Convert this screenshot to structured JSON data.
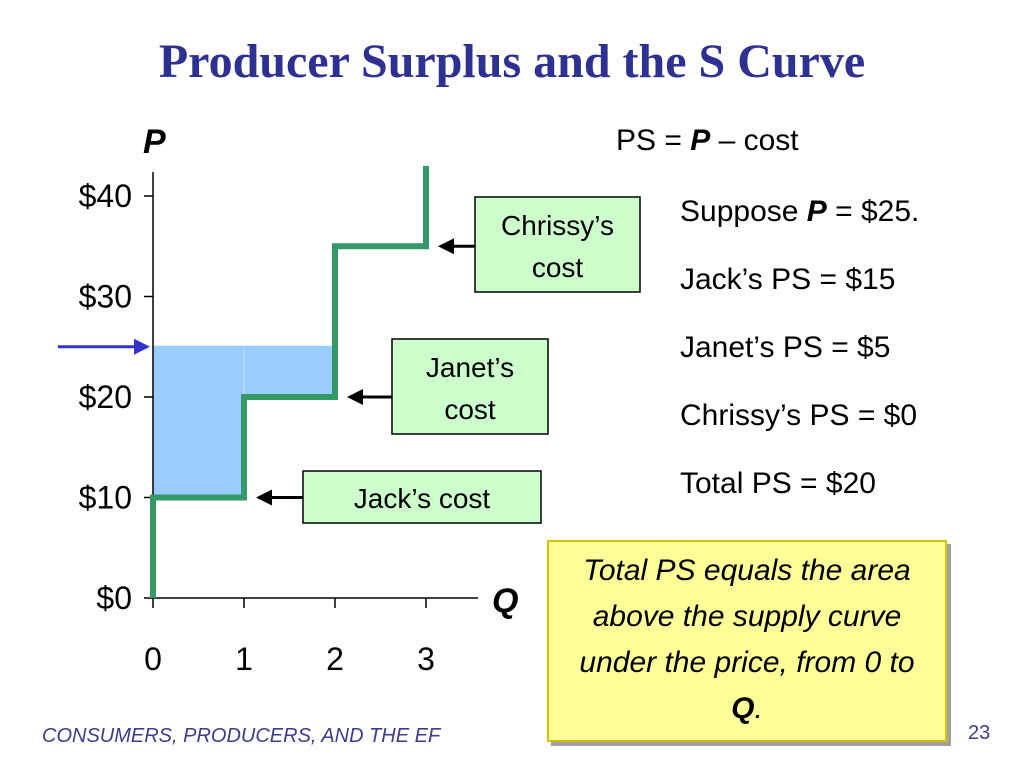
{
  "slide": {
    "title": "Producer Surplus and the S Curve",
    "footer": "CONSUMERS, PRODUCERS, AND THE EF",
    "page_number": "23"
  },
  "formula": {
    "prefix": "PS = ",
    "var": "P",
    "suffix": " – cost"
  },
  "suppose": {
    "prefix": "Suppose ",
    "var": "P",
    "suffix": " = $25."
  },
  "ps_results": [
    {
      "label": "Jack’s PS = $15"
    },
    {
      "label": "Janet’s PS = $5"
    },
    {
      "label": "Chrissy’s PS = $0"
    },
    {
      "label": "Total PS = $20"
    }
  ],
  "callout": {
    "text": "Total PS equals the area above the supply curve under the price, from 0 to ",
    "var": "Q",
    "end": "."
  },
  "chart_data": {
    "type": "line",
    "title": "",
    "xlabel": "Q",
    "ylabel": "P",
    "xlim": [
      0,
      3.3
    ],
    "ylim": [
      0,
      43
    ],
    "x_ticks": [
      "0",
      "1",
      "2",
      "3"
    ],
    "y_ticks": [
      {
        "value": 0,
        "label": "$0"
      },
      {
        "value": 10,
        "label": "$10"
      },
      {
        "value": 20,
        "label": "$20"
      },
      {
        "value": 30,
        "label": "$30"
      },
      {
        "value": 40,
        "label": "$40"
      }
    ],
    "supply_curve": [
      [
        0,
        0
      ],
      [
        0,
        10
      ],
      [
        1,
        10
      ],
      [
        1,
        20
      ],
      [
        2,
        20
      ],
      [
        2,
        35
      ],
      [
        3,
        35
      ],
      [
        3,
        43
      ]
    ],
    "price": 25,
    "surplus_area": [
      [
        0,
        25
      ],
      [
        2,
        25
      ],
      [
        2,
        20
      ],
      [
        1,
        20
      ],
      [
        1,
        10
      ],
      [
        0,
        10
      ]
    ],
    "cost_labels": [
      {
        "text": "Jack’s cost",
        "value": 10,
        "at_q": 1
      },
      {
        "text": "Janet’s cost",
        "value": 20,
        "at_q": 2
      },
      {
        "text": "Chrissy’s cost",
        "value": 35,
        "at_q": 3
      }
    ],
    "colors": {
      "supply": "#339966",
      "surplus_fill": "#99ccff",
      "price_arrow": "#3333cc",
      "label_box": "#ccffcc"
    }
  }
}
